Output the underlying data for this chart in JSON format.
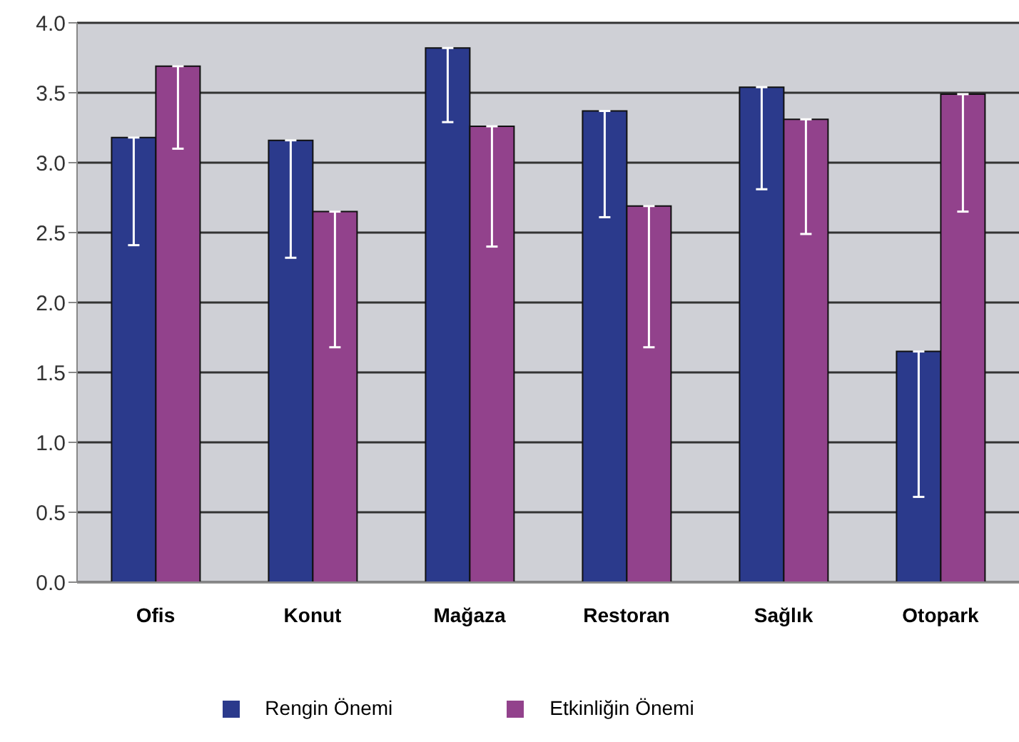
{
  "chart_data": {
    "type": "bar",
    "categories": [
      "Ofis",
      "Konut",
      "Mağaza",
      "Restoran",
      "Sağlık",
      "Otopark"
    ],
    "series": [
      {
        "name": "Rengin Önemi",
        "color": "#2b3a8c",
        "values": [
          3.18,
          3.16,
          3.82,
          3.37,
          3.54,
          1.65
        ],
        "errors": [
          [
            2.41,
            3.18
          ],
          [
            2.32,
            3.16
          ],
          [
            3.29,
            3.82
          ],
          [
            2.61,
            3.37
          ],
          [
            2.81,
            3.54
          ],
          [
            0.61,
            1.65
          ]
        ]
      },
      {
        "name": "Etkinliğin Önemi",
        "color": "#92428c",
        "values": [
          3.69,
          2.65,
          3.26,
          2.69,
          3.31,
          3.49
        ],
        "errors": [
          [
            3.1,
            3.69
          ],
          [
            1.68,
            2.65
          ],
          [
            2.4,
            3.26
          ],
          [
            1.68,
            2.69
          ],
          [
            2.49,
            3.31
          ],
          [
            2.65,
            3.49
          ]
        ]
      }
    ],
    "ylim": [
      0,
      4
    ],
    "yticks": [
      {
        "value": 0,
        "label": "0.0"
      },
      {
        "value": 0.5,
        "label": "0.5"
      },
      {
        "value": 1,
        "label": "1.0"
      },
      {
        "value": 1.5,
        "label": "1.5"
      },
      {
        "value": 2,
        "label": "2.0"
      },
      {
        "value": 2.5,
        "label": "2.5"
      },
      {
        "value": 3,
        "label": "3.0"
      },
      {
        "value": 3.5,
        "label": "3.5"
      },
      {
        "value": 4,
        "label": "4.0"
      }
    ],
    "grid": "y",
    "legend": "bottom"
  }
}
